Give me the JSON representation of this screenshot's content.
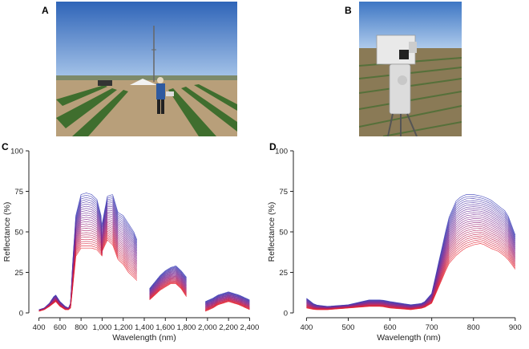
{
  "panels": {
    "a": {
      "letter": "A"
    },
    "b": {
      "letter": "B"
    },
    "c": {
      "letter": "C"
    },
    "d": {
      "letter": "D"
    }
  },
  "colors": {
    "sky_top": "#4a7fc8",
    "sky_bottom": "#a8c6e8",
    "soil": "#b8a07c",
    "crop": "#3f6e2e",
    "series_blue": "#3b3fb8",
    "series_purple": "#8a2a8c",
    "series_red": "#e8202a"
  },
  "chart_data": [
    {
      "type": "line",
      "panel": "C",
      "xlabel": "Wavelength (nm)",
      "ylabel": "Reflectance (%)",
      "xlim": [
        350,
        2450
      ],
      "ylim": [
        0,
        100
      ],
      "xticks": [
        400,
        600,
        800,
        1000,
        1200,
        1400,
        1600,
        1800,
        2000,
        2200,
        2400
      ],
      "xtick_labels": [
        "400",
        "600",
        "800",
        "1,000",
        "1,200",
        "1,400",
        "1,600",
        "1,800",
        "2,000",
        "2,200",
        "2,400"
      ],
      "yticks": [
        0,
        25,
        50,
        75,
        100
      ],
      "ytick_labels": [
        "0",
        "25",
        "50",
        "75",
        "100"
      ],
      "segments": [
        {
          "x": [
            400,
            450,
            500,
            540,
            560,
            600,
            650,
            680,
            700,
            720,
            750,
            800,
            850,
            900,
            950,
            990,
            1000
          ],
          "envelope_high": [
            2,
            3,
            6,
            10,
            11,
            7,
            4,
            3,
            6,
            30,
            60,
            73,
            74,
            73,
            70,
            60,
            40
          ],
          "envelope_low": [
            1,
            2,
            4,
            6,
            7,
            4,
            2,
            2,
            3,
            15,
            35,
            40,
            40,
            40,
            39,
            36,
            35
          ]
        },
        {
          "x": [
            1000,
            1050,
            1100,
            1150,
            1200,
            1250,
            1300,
            1330
          ],
          "envelope_high": [
            55,
            72,
            73,
            62,
            60,
            55,
            50,
            45
          ],
          "envelope_low": [
            38,
            45,
            42,
            33,
            30,
            25,
            22,
            20
          ]
        },
        {
          "x": [
            1450,
            1500,
            1550,
            1600,
            1650,
            1700,
            1750,
            1800
          ],
          "envelope_high": [
            15,
            19,
            23,
            26,
            28,
            29,
            26,
            22
          ],
          "envelope_low": [
            8,
            11,
            14,
            16,
            18,
            18,
            15,
            10
          ]
        },
        {
          "x": [
            1980,
            2050,
            2100,
            2150,
            2200,
            2250,
            2300,
            2400
          ],
          "envelope_high": [
            7,
            9,
            11,
            12,
            13,
            12,
            11,
            8
          ],
          "envelope_low": [
            1,
            3,
            5,
            6,
            7,
            6,
            5,
            2
          ]
        }
      ]
    },
    {
      "type": "line",
      "panel": "D",
      "xlabel": "Wavelength (nm)",
      "ylabel": "Reflectance (%)",
      "xlim": [
        380,
        910
      ],
      "ylim": [
        0,
        100
      ],
      "xticks": [
        400,
        500,
        600,
        700,
        800,
        900
      ],
      "xtick_labels": [
        "400",
        "500",
        "600",
        "700",
        "800",
        "900"
      ],
      "yticks": [
        0,
        25,
        50,
        75,
        100
      ],
      "ytick_labels": [
        "0",
        "25",
        "50",
        "75",
        "100"
      ],
      "segments": [
        {
          "x": [
            400,
            420,
            450,
            500,
            550,
            580,
            600,
            650,
            680,
            700,
            720,
            740,
            760,
            780,
            800,
            820,
            840,
            860,
            880,
            900
          ],
          "envelope_high": [
            9,
            5,
            4,
            5,
            8,
            8,
            7,
            5,
            6,
            12,
            35,
            58,
            70,
            73,
            73,
            72,
            70,
            66,
            62,
            48
          ],
          "envelope_low": [
            3,
            2,
            2,
            3,
            4,
            4,
            3,
            2,
            3,
            6,
            18,
            30,
            36,
            40,
            42,
            43,
            40,
            38,
            34,
            27
          ]
        }
      ]
    }
  ]
}
